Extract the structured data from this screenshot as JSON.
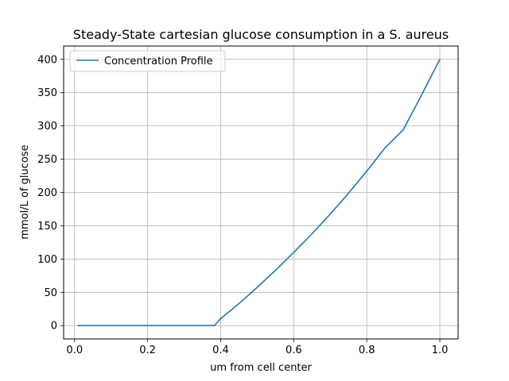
{
  "chart_data": {
    "type": "line",
    "title": "Steady-State cartesian glucose consumption in a S. aureus",
    "xlabel": "um from cell center",
    "ylabel": "mmol/L of glucose",
    "xlim": [
      -0.03,
      1.05
    ],
    "ylim": [
      -20,
      420
    ],
    "xticks": [
      0.0,
      0.2,
      0.4,
      0.6,
      0.8,
      1.0
    ],
    "xtick_labels": [
      "0.0",
      "0.2",
      "0.4",
      "0.6",
      "0.8",
      "1.0"
    ],
    "yticks": [
      0,
      50,
      100,
      150,
      200,
      250,
      300,
      350,
      400
    ],
    "ytick_labels": [
      "0",
      "50",
      "100",
      "150",
      "200",
      "250",
      "300",
      "350",
      "400"
    ],
    "grid": true,
    "legend": {
      "position": "upper-left"
    },
    "series": [
      {
        "name": "Concentration Profile",
        "color": "#1f77b4",
        "x": [
          0.01,
          0.1,
          0.2,
          0.3,
          0.383,
          0.4,
          0.45,
          0.5,
          0.55,
          0.6,
          0.65,
          0.7,
          0.75,
          0.8,
          0.85,
          0.9,
          0.95,
          1.0
        ],
        "y": [
          0,
          0,
          0,
          0,
          0,
          10.6,
          33,
          57.5,
          83.1,
          109.9,
          138,
          167.6,
          198.9,
          232,
          267.1,
          294.3,
          346.5,
          400
        ]
      }
    ]
  }
}
